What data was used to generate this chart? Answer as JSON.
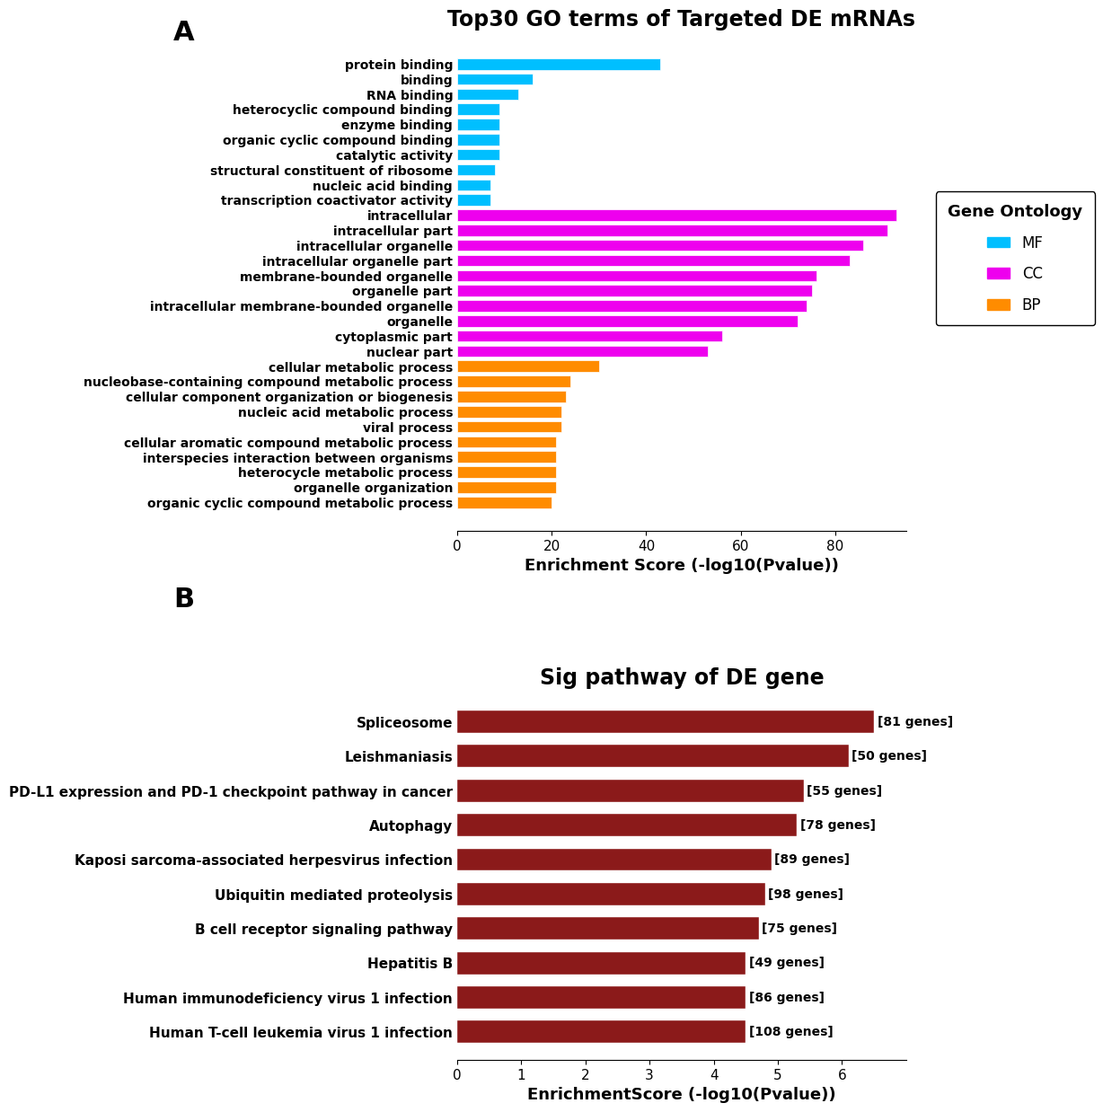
{
  "panel_a": {
    "title": "Top30 GO terms of Targeted DE mRNAs",
    "xlabel": "Enrichment Score (-log10(Pvalue))",
    "categories": [
      "protein binding",
      "binding",
      "RNA binding",
      "heterocyclic compound binding",
      "enzyme binding",
      "organic cyclic compound binding",
      "catalytic activity",
      "structural constituent of ribosome",
      "nucleic acid binding",
      "transcription coactivator activity",
      "intracellular",
      "intracellular part",
      "intracellular organelle",
      "intracellular organelle part",
      "membrane-bounded organelle",
      "organelle part",
      "intracellular membrane-bounded organelle",
      "organelle",
      "cytoplasmic part",
      "nuclear part",
      "cellular metabolic process",
      "nucleobase-containing compound metabolic process",
      "cellular component organization or biogenesis",
      "nucleic acid metabolic process",
      "viral process",
      "cellular aromatic compound metabolic process",
      "interspecies interaction between organisms",
      "heterocycle metabolic process",
      "organelle organization",
      "organic cyclic compound metabolic process"
    ],
    "values": [
      43,
      16,
      13,
      9,
      9,
      9,
      9,
      8,
      7,
      7,
      93,
      91,
      86,
      83,
      76,
      75,
      74,
      72,
      56,
      53,
      30,
      24,
      23,
      22,
      22,
      21,
      21,
      21,
      21,
      20
    ],
    "colors": [
      "#00BFFF",
      "#00BFFF",
      "#00BFFF",
      "#00BFFF",
      "#00BFFF",
      "#00BFFF",
      "#00BFFF",
      "#00BFFF",
      "#00BFFF",
      "#00BFFF",
      "#EE00EE",
      "#EE00EE",
      "#EE00EE",
      "#EE00EE",
      "#EE00EE",
      "#EE00EE",
      "#EE00EE",
      "#EE00EE",
      "#EE00EE",
      "#EE00EE",
      "#FF8C00",
      "#FF8C00",
      "#FF8C00",
      "#FF8C00",
      "#FF8C00",
      "#FF8C00",
      "#FF8C00",
      "#FF8C00",
      "#FF8C00",
      "#FF8C00"
    ],
    "legend_labels": [
      "MF",
      "CC",
      "BP"
    ],
    "legend_colors": [
      "#00BFFF",
      "#EE00EE",
      "#FF8C00"
    ],
    "legend_title": "Gene Ontology",
    "xlim": [
      0,
      95
    ],
    "xticks": [
      0,
      20,
      40,
      60,
      80
    ]
  },
  "panel_b": {
    "title": "Sig pathway of DE gene",
    "xlabel": "EnrichmentScore (-log10(Pvalue))",
    "categories": [
      "Spliceosome",
      "Leishmaniasis",
      "PD-L1 expression and PD-1 checkpoint pathway in cancer",
      "Autophagy",
      "Kaposi sarcoma-associated herpesvirus infection",
      "Ubiquitin mediated proteolysis",
      "B cell receptor signaling pathway",
      "Hepatitis B",
      "Human immunodeficiency virus 1 infection",
      "Human T-cell leukemia virus 1 infection"
    ],
    "values": [
      6.5,
      6.1,
      5.4,
      5.3,
      4.9,
      4.8,
      4.7,
      4.5,
      4.5,
      4.5
    ],
    "gene_counts": [
      81,
      50,
      55,
      78,
      89,
      98,
      75,
      49,
      86,
      108
    ],
    "bar_color": "#8B1A1A",
    "xlim": [
      0,
      7
    ],
    "xticks": [
      0,
      1,
      2,
      3,
      4,
      5,
      6
    ]
  },
  "bg_color": "#FFFFFF",
  "label_fontsize": 22,
  "title_fontsize_a": 17,
  "title_fontsize_b": 17,
  "ytick_fontsize_a": 10,
  "ytick_fontsize_b": 11,
  "xtick_fontsize": 11,
  "axis_label_fontsize": 13
}
